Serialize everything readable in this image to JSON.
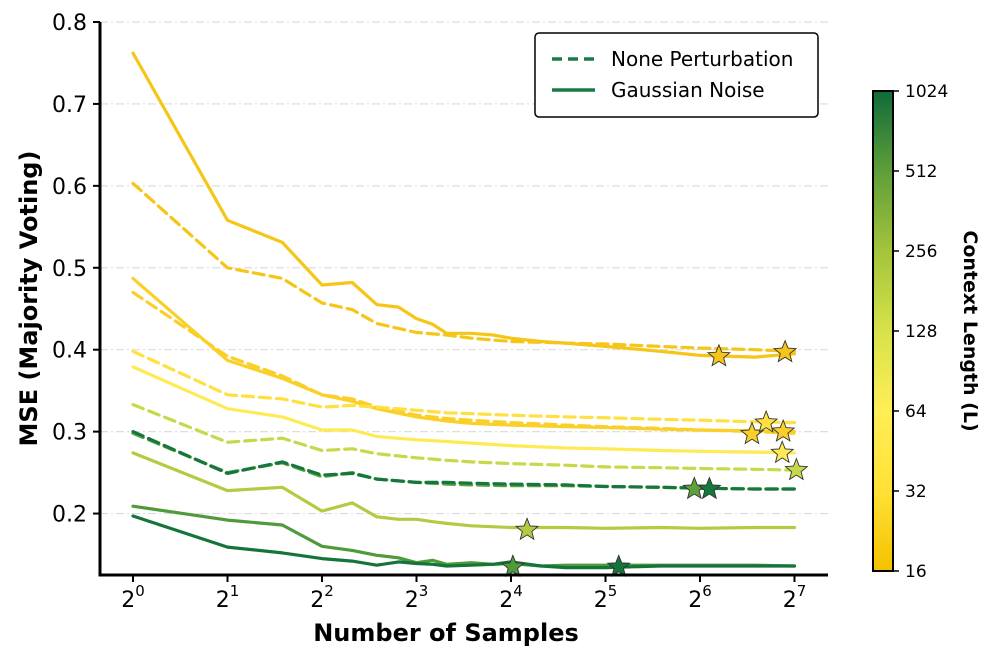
{
  "chart_data": {
    "type": "line",
    "title": "",
    "xlabel": "Number of Samples",
    "ylabel": "MSE (Majority Voting)",
    "x_scale": "log2",
    "x_range": [
      0,
      7.2
    ],
    "y_range": [
      0.125,
      0.8
    ],
    "x_ticks": [
      {
        "base": "2",
        "exp": "0"
      },
      {
        "base": "2",
        "exp": "1"
      },
      {
        "base": "2",
        "exp": "2"
      },
      {
        "base": "2",
        "exp": "3"
      },
      {
        "base": "2",
        "exp": "4"
      },
      {
        "base": "2",
        "exp": "5"
      },
      {
        "base": "2",
        "exp": "6"
      },
      {
        "base": "2",
        "exp": "7"
      }
    ],
    "y_ticks": [
      "0.2",
      "0.3",
      "0.4",
      "0.5",
      "0.6",
      "0.7",
      "0.8"
    ],
    "grid": "horizontal dash-dot",
    "legend": {
      "position": "top-right",
      "entries": [
        {
          "label": "None Perturbation",
          "style": "dashed",
          "color": "#1a7a45"
        },
        {
          "label": "Gaussian Noise",
          "style": "solid",
          "color": "#1a7a45"
        }
      ]
    },
    "colorbar": {
      "title": "Context Length (L)",
      "scale": "log2",
      "ticks": [
        "16",
        "32",
        "64",
        "128",
        "256",
        "512",
        "1024"
      ],
      "gradient": [
        "#f5c100",
        "#ffe135",
        "#ffee58",
        "#d7e24a",
        "#a3c43c",
        "#5e9e3a",
        "#0f6b3a"
      ]
    },
    "series": [
      {
        "context_length": 16,
        "perturbation": "Gaussian Noise",
        "color": "#f5c518",
        "dash": false,
        "x": [
          0,
          1,
          1.58,
          2,
          2.32,
          2.58,
          2.81,
          3,
          3.17,
          3.32,
          3.58,
          3.81,
          4,
          4.32,
          4.58,
          5,
          5.58,
          6,
          6.58,
          7
        ],
        "y": [
          0.762,
          0.558,
          0.531,
          0.479,
          0.482,
          0.455,
          0.452,
          0.438,
          0.431,
          0.42,
          0.42,
          0.418,
          0.414,
          0.41,
          0.408,
          0.404,
          0.398,
          0.393,
          0.391,
          0.395
        ],
        "star": [
          6.2,
          0.392
        ]
      },
      {
        "context_length": 16,
        "perturbation": "None Perturbation",
        "color": "#f5c518",
        "dash": true,
        "x": [
          0,
          1,
          1.58,
          2,
          2.32,
          2.58,
          3,
          3.32,
          3.58,
          4,
          4.32,
          4.58,
          5,
          5.58,
          6,
          6.58,
          7
        ],
        "y": [
          0.603,
          0.5,
          0.487,
          0.457,
          0.449,
          0.432,
          0.421,
          0.418,
          0.414,
          0.41,
          0.409,
          0.408,
          0.407,
          0.404,
          0.402,
          0.4,
          0.398
        ],
        "star": [
          6.9,
          0.397
        ]
      },
      {
        "context_length": 24,
        "perturbation": "Gaussian Noise",
        "color": "#fad028",
        "dash": false,
        "x": [
          0,
          1,
          1.58,
          2,
          2.32,
          2.58,
          3,
          3.32,
          3.58,
          4,
          4.58,
          5,
          5.58,
          6,
          6.58,
          7
        ],
        "y": [
          0.487,
          0.387,
          0.365,
          0.345,
          0.337,
          0.328,
          0.318,
          0.313,
          0.31,
          0.308,
          0.306,
          0.305,
          0.303,
          0.302,
          0.301,
          0.3
        ],
        "star": [
          6.88,
          0.3
        ]
      },
      {
        "context_length": 24,
        "perturbation": "None Perturbation",
        "color": "#fad028",
        "dash": true,
        "x": [
          0,
          1,
          1.58,
          2,
          2.32,
          2.58,
          3,
          3.32,
          3.58,
          4,
          4.58,
          5,
          5.58,
          6,
          6.58,
          7
        ],
        "y": [
          0.47,
          0.392,
          0.368,
          0.345,
          0.34,
          0.33,
          0.32,
          0.316,
          0.314,
          0.311,
          0.308,
          0.306,
          0.304,
          0.302,
          0.3,
          0.298
        ],
        "star": [
          6.55,
          0.297
        ]
      },
      {
        "context_length": 64,
        "perturbation": "None Perturbation",
        "color": "#ffe040",
        "dash": true,
        "x": [
          0,
          1,
          1.58,
          2,
          2.32,
          2.58,
          3,
          3.32,
          3.58,
          4,
          4.58,
          5,
          5.58,
          6,
          6.58,
          7
        ],
        "y": [
          0.398,
          0.345,
          0.34,
          0.33,
          0.332,
          0.33,
          0.326,
          0.323,
          0.322,
          0.32,
          0.318,
          0.317,
          0.315,
          0.314,
          0.312,
          0.311
        ],
        "star": [
          6.7,
          0.311
        ]
      },
      {
        "context_length": 96,
        "perturbation": "Gaussian Noise",
        "color": "#ffea55",
        "dash": false,
        "x": [
          0,
          1,
          1.58,
          2,
          2.32,
          2.58,
          3,
          3.32,
          3.58,
          4,
          4.58,
          5,
          5.58,
          6,
          6.58,
          7
        ],
        "y": [
          0.379,
          0.328,
          0.318,
          0.302,
          0.302,
          0.294,
          0.29,
          0.288,
          0.286,
          0.283,
          0.28,
          0.279,
          0.277,
          0.276,
          0.275,
          0.274
        ],
        "star": [
          6.87,
          0.274
        ]
      },
      {
        "context_length": 256,
        "perturbation": "None Perturbation",
        "color": "#c8d84a",
        "dash": true,
        "x": [
          0,
          1,
          1.58,
          2,
          2.32,
          2.58,
          3,
          3.32,
          3.58,
          4,
          4.58,
          5,
          5.58,
          6,
          6.58,
          7
        ],
        "y": [
          0.333,
          0.287,
          0.292,
          0.277,
          0.279,
          0.273,
          0.268,
          0.265,
          0.263,
          0.261,
          0.259,
          0.257,
          0.256,
          0.255,
          0.254,
          0.253
        ],
        "star": [
          7.02,
          0.253
        ]
      },
      {
        "context_length": 256,
        "perturbation": "Gaussian Noise",
        "color": "#b2cb42",
        "dash": false,
        "x": [
          0,
          1,
          1.58,
          2,
          2.32,
          2.58,
          2.81,
          3,
          3.17,
          3.32,
          3.58,
          4,
          4.58,
          5,
          5.58,
          6,
          6.58,
          7
        ],
        "y": [
          0.274,
          0.228,
          0.232,
          0.203,
          0.213,
          0.196,
          0.193,
          0.193,
          0.19,
          0.188,
          0.185,
          0.183,
          0.183,
          0.182,
          0.183,
          0.182,
          0.183,
          0.183
        ],
        "star": [
          4.17,
          0.18
        ]
      },
      {
        "context_length": 512,
        "perturbation": "None Perturbation",
        "color": "#5ea23c",
        "dash": true,
        "x": [
          0,
          1,
          1.58,
          2,
          2.32,
          2.58,
          3,
          3.32,
          3.58,
          4,
          4.58,
          5,
          5.58,
          6,
          6.58,
          7
        ],
        "y": [
          0.298,
          0.25,
          0.262,
          0.245,
          0.25,
          0.242,
          0.238,
          0.236,
          0.235,
          0.234,
          0.234,
          0.233,
          0.232,
          0.231,
          0.23,
          0.23
        ],
        "star": [
          5.94,
          0.23
        ]
      },
      {
        "context_length": 1024,
        "perturbation": "None Perturbation",
        "color": "#16773e",
        "dash": true,
        "x": [
          0,
          1,
          1.58,
          2,
          2.32,
          2.58,
          3,
          3.32,
          3.58,
          4,
          4.58,
          5,
          5.58,
          6,
          6.58,
          7
        ],
        "y": [
          0.3,
          0.249,
          0.263,
          0.247,
          0.249,
          0.242,
          0.238,
          0.238,
          0.237,
          0.236,
          0.235,
          0.233,
          0.232,
          0.231,
          0.23,
          0.23
        ],
        "star": [
          6.1,
          0.23
        ]
      },
      {
        "context_length": 512,
        "perturbation": "Gaussian Noise",
        "color": "#4f9a3a",
        "dash": false,
        "x": [
          0,
          1,
          1.58,
          2,
          2.32,
          2.58,
          2.81,
          3,
          3.17,
          3.32,
          3.58,
          3.81,
          4,
          4.32,
          4.58,
          5,
          5.58,
          6,
          6.58,
          7
        ],
        "y": [
          0.209,
          0.192,
          0.186,
          0.16,
          0.155,
          0.149,
          0.146,
          0.14,
          0.143,
          0.138,
          0.14,
          0.138,
          0.139,
          0.136,
          0.137,
          0.137,
          0.137,
          0.137,
          0.137,
          0.136
        ],
        "star": [
          4.02,
          0.135
        ]
      },
      {
        "context_length": 1024,
        "perturbation": "Gaussian Noise",
        "color": "#15743c",
        "dash": false,
        "x": [
          0,
          1,
          1.58,
          2,
          2.32,
          2.58,
          2.81,
          3,
          3.17,
          3.32,
          3.58,
          3.81,
          4,
          4.32,
          4.58,
          5,
          5.58,
          6,
          6.58,
          7
        ],
        "y": [
          0.197,
          0.159,
          0.152,
          0.145,
          0.142,
          0.137,
          0.141,
          0.139,
          0.138,
          0.136,
          0.137,
          0.138,
          0.141,
          0.136,
          0.134,
          0.134,
          0.136,
          0.136,
          0.136,
          0.136
        ],
        "star": [
          5.14,
          0.135
        ]
      }
    ]
  }
}
